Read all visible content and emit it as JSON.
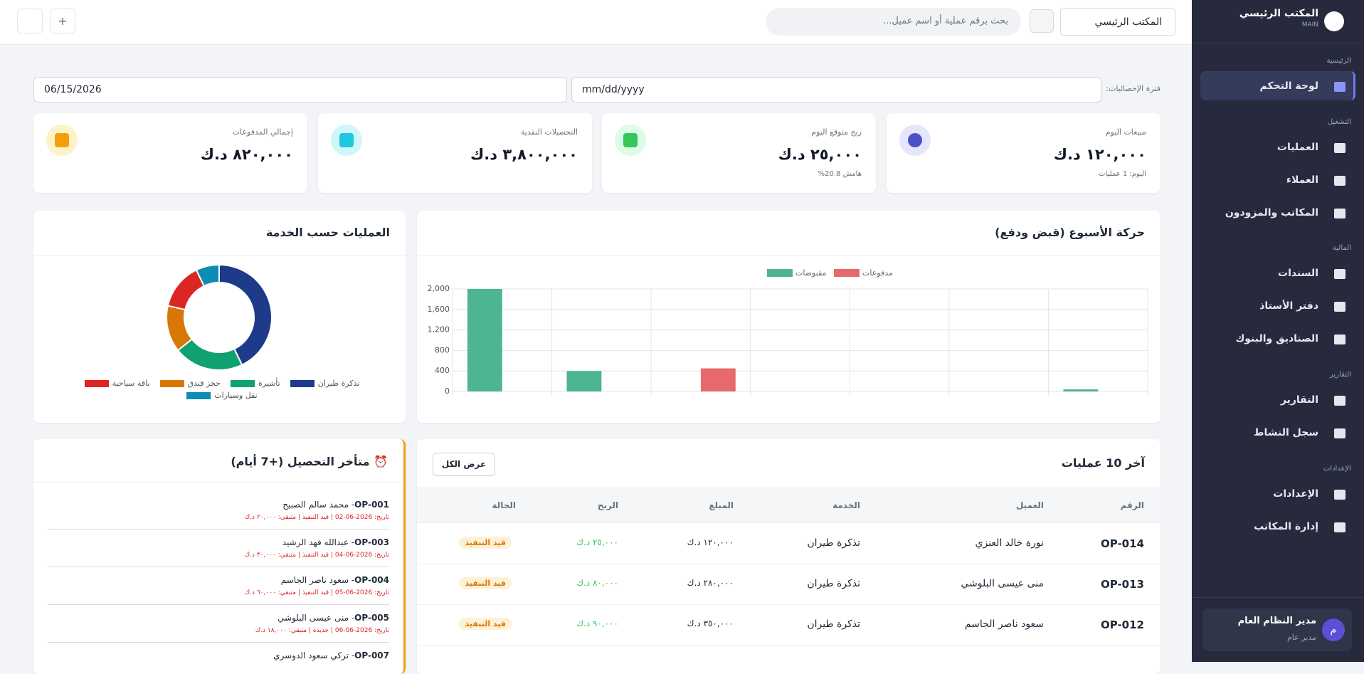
{
  "sidebar": {
    "brand": "المكتب الرئيسي",
    "brand_code": "MAIN",
    "sections": [
      {
        "title": "الرئيسية",
        "items": [
          "لوحة التحكم"
        ]
      },
      {
        "title": "التشغيل",
        "items": [
          "العمليات",
          "العملاء",
          "المكاتب والمزودون"
        ]
      },
      {
        "title": "المالية",
        "items": [
          "السندات",
          "دفتر الأستاذ",
          "الصناديق والبنوك"
        ]
      },
      {
        "title": "التقارير",
        "items": [
          "التقارير",
          "سجل النشاط"
        ]
      },
      {
        "title": "الإعدادات",
        "items": [
          "الإعدادات",
          "إدارة المكاتب"
        ]
      }
    ],
    "user": {
      "initial": "م",
      "name": "مدير النظام العام",
      "role": "مدير عام"
    }
  },
  "header": {
    "office_select": "المكتب الرئيسي",
    "search_placeholder": "بحث برقم عملية أو اسم عميل..."
  },
  "filters": {
    "label": "فترة الإحصائيات:",
    "from": "mm/dd/yyyy",
    "to": "06/15/2026"
  },
  "stats": [
    {
      "label": "مبيعات اليوم",
      "value": "١٢٠,٠٠٠ د.ك",
      "note": "اليوم: 1 عمليات"
    },
    {
      "label": "ربح متوقع اليوم",
      "value": "٢٥,٠٠٠ د.ك",
      "note": "هامش 20.8%"
    },
    {
      "label": "التحصيلات النقدية",
      "value": "٣,٨٠٠,٠٠٠ د.ك"
    },
    {
      "label": "إجمالي المدفوعات",
      "value": "٨٢٠,٠٠٠ د.ك"
    }
  ],
  "chart_data": [
    {
      "type": "bar",
      "title": "حركة الأسبوع (قبض ودفع)",
      "categories": [
        null,
        null,
        null,
        null,
        null,
        null,
        null
      ],
      "series": [
        {
          "name": "مقبوضات",
          "color": "#4db592",
          "values": [
            2000,
            400,
            0,
            0,
            0,
            0,
            40
          ]
        },
        {
          "name": "مدفوعات",
          "color": "#e8696b",
          "values": [
            0,
            0,
            450,
            0,
            0,
            0,
            0
          ]
        }
      ],
      "ylim": [
        0,
        2000
      ],
      "yticks": [
        0,
        400,
        800,
        {
          "value": 1200,
          "label": "1,200"
        },
        {
          "value": 1600,
          "label": "1,600"
        },
        {
          "value": 2000,
          "label": "2,000"
        }
      ],
      "grid": true,
      "legend": "top"
    },
    {
      "type": "doughnut",
      "title": "العمليات حسب الخدمة",
      "categories": [
        "تذكرة طيران",
        "تأشيرة",
        "حجز فندق",
        "باقة سياحية",
        "نقل وسيارات"
      ],
      "values": [
        6,
        3,
        2,
        2,
        1
      ],
      "colors": [
        "#1e3a8a",
        "#10a170",
        "#d97706",
        "#dc2626",
        "#0e8db4"
      ],
      "legend": "bottom"
    }
  ],
  "latest": {
    "title": "آخر 10 عمليات",
    "button": "عرض الكل",
    "columns": [
      "الرقم",
      "العميل",
      "الخدمة",
      "المبلغ",
      "الربح",
      "الحالة"
    ],
    "rows": [
      [
        "OP-014",
        "نورة خالد العنزي",
        "تذكرة طيران",
        "١٢٠,٠٠٠ د.ك",
        "٢٥,٠٠٠ د.ك",
        "قيد التنفيذ"
      ],
      [
        "OP-013",
        "منى عيسى البلوشي",
        "تذكرة طيران",
        "٢٨٠,٠٠٠ د.ك",
        "٨٠,٠٠٠ د.ك",
        "قيد التنفيذ"
      ],
      [
        "OP-012",
        "سعود ناصر الجاسم",
        "تذكرة طيران",
        "٣٥٠,٠٠٠ د.ك",
        "٩٠,٠٠٠ د.ك",
        "قيد التنفيذ"
      ]
    ]
  },
  "overdue": {
    "title": "⏰ متأخر التحصيل (+7 أيام)",
    "items": [
      {
        "id": "OP-001",
        "name": "- محمد سالم الصبيح",
        "details": "تاريخ: 2026-06-02 | قيد التنفيذ | متبقي: ٢٠,٠٠٠ د.ك"
      },
      {
        "id": "OP-003",
        "name": "- عبدالله فهد الرشيد",
        "details": "تاريخ: 2026-06-04 | قيد التنفيذ | متبقي: ٣٠,٠٠٠ د.ك"
      },
      {
        "id": "OP-004",
        "name": "- سعود ناصر الجاسم",
        "details": "تاريخ: 2026-06-05 | قيد التنفيذ | متبقي: ٦٠,٠٠٠ د.ك"
      },
      {
        "id": "OP-005",
        "name": "- منى عيسى البلوشي",
        "details": "تاريخ: 2026-06-06 | جديدة | متبقي: ١٨,٠٠٠ د.ك"
      },
      {
        "id": "OP-007",
        "name": "- تركي سعود الدوسري"
      }
    ]
  }
}
